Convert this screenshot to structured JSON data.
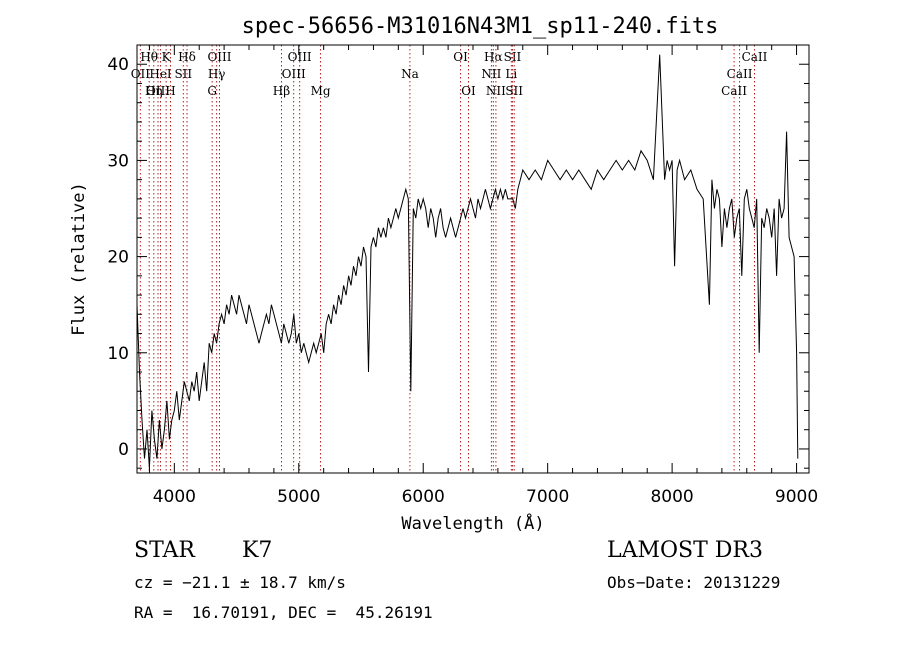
{
  "chart_data": {
    "type": "line",
    "title": "spec-56656-M31016N43M1_sp11-240.fits",
    "xlabel": "Wavelength (Å)",
    "ylabel": "Flux (relative)",
    "xlim": [
      3700,
      9100
    ],
    "ylim": [
      -2.5,
      42
    ],
    "x_ticks": [
      4000,
      5000,
      6000,
      7000,
      8000,
      9000
    ],
    "y_ticks": [
      0,
      10,
      20,
      30,
      40
    ],
    "x_tick_labels": [
      "4000",
      "5000",
      "6000",
      "7000",
      "8000",
      "9000"
    ],
    "y_tick_labels": [
      "0",
      "10",
      "20",
      "30",
      "40"
    ],
    "line_color": "#000000",
    "marker_color": "#b22222",
    "series": [
      {
        "x": [
          3700,
          3720,
          3740,
          3760,
          3780,
          3800,
          3820,
          3840,
          3860,
          3880,
          3900,
          3920,
          3940,
          3960,
          3980,
          4000,
          4020,
          4040,
          4060,
          4080,
          4100,
          4120,
          4140,
          4160,
          4180,
          4200,
          4220,
          4240,
          4260,
          4280,
          4300,
          4320,
          4340,
          4360,
          4380,
          4400,
          4420,
          4440,
          4460,
          4480,
          4500,
          4520,
          4540,
          4560,
          4580,
          4600,
          4620,
          4640,
          4660,
          4680,
          4700,
          4720,
          4740,
          4760,
          4780,
          4800,
          4820,
          4840,
          4860,
          4880,
          4900,
          4920,
          4940,
          4960,
          4980,
          5000,
          5020,
          5040,
          5060,
          5080,
          5100,
          5120,
          5140,
          5160,
          5180,
          5200,
          5220,
          5240,
          5260,
          5280,
          5300,
          5320,
          5340,
          5360,
          5380,
          5400,
          5420,
          5440,
          5460,
          5480,
          5500,
          5520,
          5540,
          5560,
          5580,
          5600,
          5620,
          5640,
          5660,
          5680,
          5700,
          5720,
          5740,
          5760,
          5780,
          5800,
          5820,
          5840,
          5860,
          5880,
          5900,
          5920,
          5940,
          5960,
          5980,
          6000,
          6020,
          6040,
          6060,
          6080,
          6100,
          6120,
          6140,
          6160,
          6180,
          6200,
          6220,
          6240,
          6260,
          6280,
          6300,
          6320,
          6340,
          6360,
          6380,
          6400,
          6420,
          6440,
          6460,
          6480,
          6500,
          6520,
          6540,
          6560,
          6580,
          6600,
          6620,
          6640,
          6660,
          6680,
          6700,
          6720,
          6740,
          6760,
          6780,
          6800,
          6850,
          6900,
          6950,
          7000,
          7050,
          7100,
          7150,
          7200,
          7250,
          7300,
          7350,
          7400,
          7450,
          7500,
          7550,
          7600,
          7650,
          7700,
          7750,
          7800,
          7850,
          7900,
          7940,
          7960,
          7980,
          8000,
          8020,
          8040,
          8060,
          8080,
          8100,
          8150,
          8200,
          8250,
          8300,
          8320,
          8340,
          8360,
          8380,
          8400,
          8420,
          8440,
          8460,
          8480,
          8500,
          8520,
          8540,
          8560,
          8580,
          8600,
          8620,
          8640,
          8660,
          8680,
          8700,
          8720,
          8740,
          8760,
          8780,
          8800,
          8820,
          8840,
          8860,
          8880,
          8900,
          8920,
          8940,
          8960,
          8980,
          9000,
          9010
        ],
        "y": [
          15,
          8,
          3,
          -1,
          2,
          -2,
          4,
          1,
          -1,
          3,
          0,
          2,
          5,
          1,
          3,
          4,
          6,
          3,
          5,
          7,
          6,
          5,
          7,
          6,
          8,
          5,
          7,
          9,
          6,
          11,
          10,
          12,
          11,
          13,
          14,
          13,
          15,
          14,
          16,
          15,
          14,
          16,
          15,
          14,
          13,
          15,
          14,
          13,
          12,
          11,
          12,
          13,
          14,
          13,
          15,
          14,
          13,
          12,
          11,
          13,
          12,
          11,
          12,
          14,
          11,
          12,
          10,
          11,
          10,
          9,
          10,
          11,
          10,
          11,
          12,
          10,
          13,
          14,
          13,
          15,
          14,
          16,
          15,
          17,
          16,
          18,
          17,
          19,
          18,
          20,
          19,
          21,
          20,
          8,
          21,
          22,
          21,
          23,
          22,
          23,
          22,
          24,
          23,
          24,
          25,
          24,
          25,
          26,
          27,
          26,
          6,
          25,
          24,
          26,
          25,
          26,
          25,
          23,
          25,
          24,
          22,
          24,
          25,
          23,
          22,
          23,
          24,
          23,
          22,
          23,
          24,
          25,
          24,
          25,
          26,
          25,
          24,
          26,
          25,
          26,
          27,
          26,
          25,
          26,
          27,
          26,
          27,
          26,
          27,
          26,
          26,
          26,
          25,
          27,
          28,
          29,
          28,
          29,
          28,
          30,
          29,
          28,
          29,
          28,
          29,
          28,
          27,
          29,
          28,
          29,
          30,
          29,
          30,
          29,
          31,
          30,
          28,
          41,
          28,
          30,
          29,
          30,
          19,
          29,
          30,
          29,
          28,
          29,
          27,
          26,
          15,
          28,
          25,
          27,
          26,
          21,
          25,
          23,
          25,
          26,
          22,
          24,
          25,
          18,
          26,
          27,
          25,
          24,
          23,
          26,
          10,
          24,
          23,
          25,
          24,
          22,
          25,
          18,
          26,
          24,
          25,
          33,
          22,
          21,
          20,
          10,
          -1
        ]
      }
    ],
    "line_markers": [
      {
        "label": "Hθ",
        "x": 3798,
        "row": 0
      },
      {
        "label": "OII",
        "x": 3727,
        "row": 1
      },
      {
        "label": "OIII",
        "x": 3869,
        "row": 2
      },
      {
        "label": "K",
        "x": 3934,
        "row": 0
      },
      {
        "label": "HeI",
        "x": 3889,
        "row": 1
      },
      {
        "label": "Hη",
        "x": 3835,
        "row": 2
      },
      {
        "label": "H",
        "x": 3969,
        "row": 2
      },
      {
        "label": "SII",
        "x": 4072,
        "row": 1
      },
      {
        "label": "Hδ",
        "x": 4102,
        "row": 0
      },
      {
        "label": "OIII",
        "x": 4363,
        "row": 0
      },
      {
        "label": "Hγ",
        "x": 4340,
        "row": 1
      },
      {
        "label": "G",
        "x": 4304,
        "row": 2
      },
      {
        "label": "Hβ",
        "x": 4861,
        "row": 2
      },
      {
        "label": "OIII",
        "x": 5007,
        "row": 0
      },
      {
        "label": "OIII",
        "x": 4959,
        "row": 1
      },
      {
        "label": "Mg",
        "x": 5175,
        "row": 2
      },
      {
        "label": "Na",
        "x": 5893,
        "row": 1
      },
      {
        "label": "OI",
        "x": 6300,
        "row": 0
      },
      {
        "label": "OI",
        "x": 6364,
        "row": 2
      },
      {
        "label": "Hα",
        "x": 6563,
        "row": 0
      },
      {
        "label": "NII",
        "x": 6548,
        "row": 1
      },
      {
        "label": "NII",
        "x": 6584,
        "row": 2
      },
      {
        "label": "SII",
        "x": 6717,
        "row": 0
      },
      {
        "label": "Li",
        "x": 6708,
        "row": 1
      },
      {
        "label": "SII",
        "x": 6731,
        "row": 2
      },
      {
        "label": "CaII",
        "x": 8662,
        "row": 0
      },
      {
        "label": "CaII",
        "x": 8542,
        "row": 1
      },
      {
        "label": "CaII",
        "x": 8498,
        "row": 2
      }
    ]
  },
  "meta": {
    "object_class": "STAR",
    "subclass": "K7",
    "survey": "LAMOST DR3",
    "velocity": "cz = −21.1 ± 18.7 km/s",
    "obs_date": "Obs−Date: 20131229",
    "coords": "RA =  16.70191, DEC =  45.26191"
  }
}
